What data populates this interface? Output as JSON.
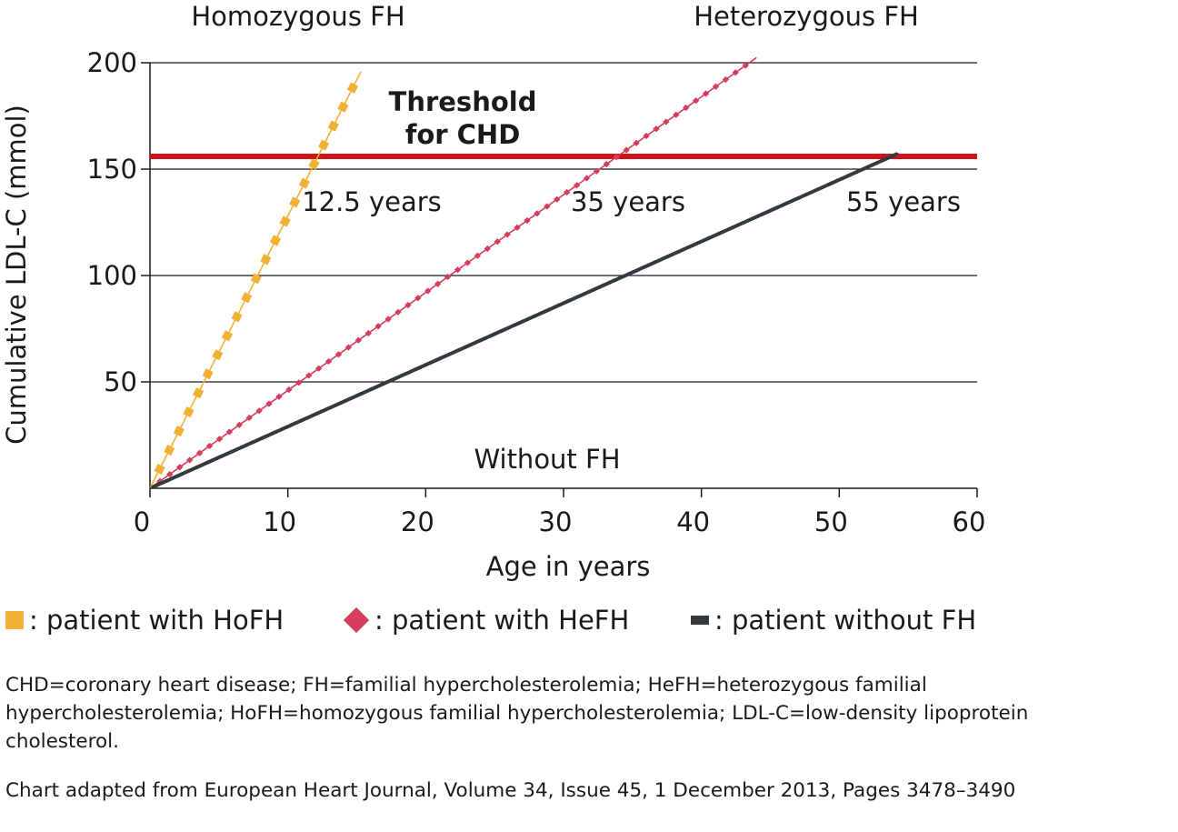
{
  "chart_data": {
    "type": "line",
    "xlabel": "Age in years",
    "ylabel": "Cumulative LDL-C (mmol)",
    "xlim": [
      0,
      60
    ],
    "ylim": [
      0,
      200
    ],
    "x_ticks": [
      0,
      10,
      20,
      30,
      40,
      50,
      60
    ],
    "y_ticks": [
      50,
      100,
      150,
      200
    ],
    "grid": "horizontal",
    "threshold": {
      "value": 156,
      "label_line1": "Threshold",
      "label_line2": "for CHD",
      "color": "#d0121b"
    },
    "series": [
      {
        "key": "hofh",
        "name": "Homozygous FH",
        "color": "#f2b134",
        "marker": "square",
        "slope": 12.8,
        "x_end": 15.3,
        "marker_step": 0.7,
        "threshold_label": "12.5 years"
      },
      {
        "key": "hefh",
        "name": "Heterozygous FH",
        "color": "#d63c5b",
        "marker": "diamond",
        "slope": 4.6,
        "x_end": 44,
        "marker_step": 0.72,
        "threshold_label": "35 years"
      },
      {
        "key": "nofh",
        "name": "Without FH",
        "color": "#333a3e",
        "marker": "dash",
        "slope": 2.9,
        "x_end": 54.3,
        "marker_step": 0.36,
        "threshold_label": "55 years"
      }
    ]
  },
  "legend": [
    {
      "key": "hofh",
      "text": ": patient with HoFH",
      "color": "#f2b134"
    },
    {
      "key": "hefh",
      "text": ": patient with HeFH",
      "color": "#d63c5b"
    },
    {
      "key": "nofh",
      "text": ": patient without FH",
      "color": "#333a3e"
    }
  ],
  "footnote": "CHD=coronary heart disease; FH=familial hypercholesterolemia; HeFH=heterozygous familial hypercholesterolemia; HoFH=homozygous familial hypercholesterolemia; LDL-C=low-density lipoprotein cholesterol.",
  "source": "Chart adapted from European Heart Journal, Volume 34, Issue 45, 1 December 2013, Pages 3478–3490"
}
